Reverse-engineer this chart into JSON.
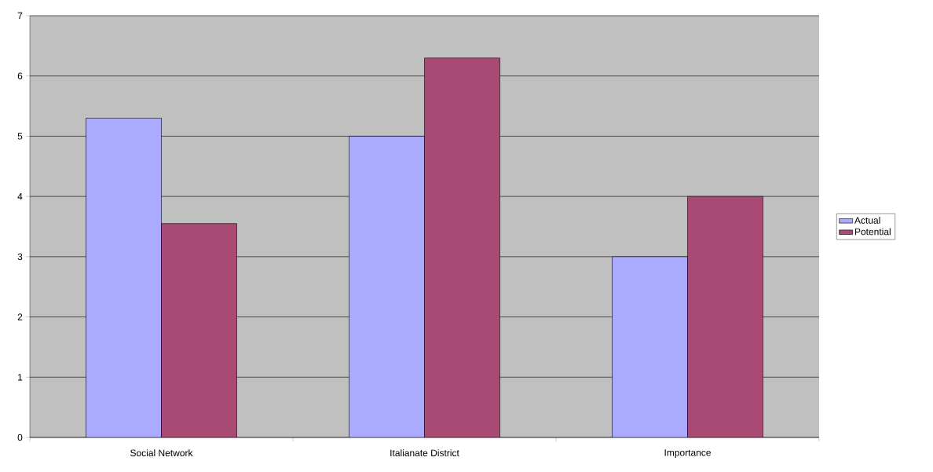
{
  "chart_data": {
    "type": "bar",
    "categories": [
      "Social Network",
      "Italianate District",
      "Importance"
    ],
    "series": [
      {
        "name": "Actual",
        "color": "#aaaaff",
        "values": [
          5.3,
          5.0,
          3.0
        ]
      },
      {
        "name": "Potential",
        "color": "#a94a75",
        "values": [
          3.55,
          6.3,
          4.0
        ]
      }
    ],
    "ylim": [
      0,
      7
    ],
    "yticks": [
      0,
      1,
      2,
      3,
      4,
      5,
      6,
      7
    ],
    "grid": "y",
    "legend": "right"
  }
}
